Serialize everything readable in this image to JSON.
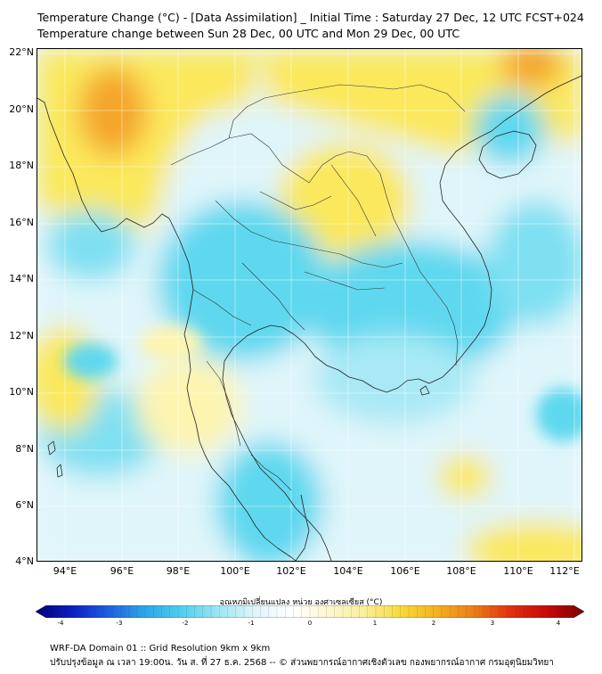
{
  "title": {
    "line1": "Temperature Change (°C) - [Data Assimilation] _ Initial Time : Saturday 27 Dec, 12 UTC FCST+024",
    "line2": "Temperature change between Sun 28 Dec, 00 UTC and Mon 29 Dec, 00 UTC"
  },
  "map": {
    "lat_labels": [
      "22°N",
      "20°N",
      "18°N",
      "16°N",
      "14°N",
      "12°N",
      "10°N",
      "8°N",
      "6°N",
      "4°N"
    ],
    "lon_labels": [
      "94°E",
      "96°E",
      "98°E",
      "100°E",
      "102°E",
      "104°E",
      "106°E",
      "108°E",
      "110°E",
      "112°E"
    ]
  },
  "colorbar": {
    "title": "อุณหภูมิเปลี่ยนแปลง หน่วย องศาเซลเซียส (°C)",
    "ticks": [
      "-4",
      "-3",
      "-2",
      "-1",
      "0",
      "1",
      "2",
      "3",
      "4"
    ],
    "range": [
      -4,
      4
    ],
    "colors": [
      "#00007a",
      "#0a1fbf",
      "#1f5fe0",
      "#2aa8e8",
      "#4fd0ee",
      "#9ee6f4",
      "#dff5fa",
      "#ffffff",
      "#fdf7cf",
      "#fbef9a",
      "#f8d93a",
      "#f3b020",
      "#ec7d14",
      "#e03010",
      "#c80808",
      "#7a0000"
    ]
  },
  "footer": {
    "line1": "WRF-DA Domain 01 :: Grid Resolution 9km x 9km",
    "line2": "ปรับปรุงข้อมูล ณ เวลา 19:00น. วัน ส. ที่ 27 ธ.ค. 2568 -- © ส่วนพยากรณ์อากาศเชิงตัวเลข กองพยากรณ์อากาศ กรมอุตุนิยมวิทยา"
  },
  "palette": {
    "ocean_base": "#e9f7fa",
    "cyan": "#5fd8ef",
    "light_cyan": "#a8e9f5",
    "yellow": "#fbe85c",
    "pale_yellow": "#fdf4b0",
    "orange": "#f4a62a"
  }
}
